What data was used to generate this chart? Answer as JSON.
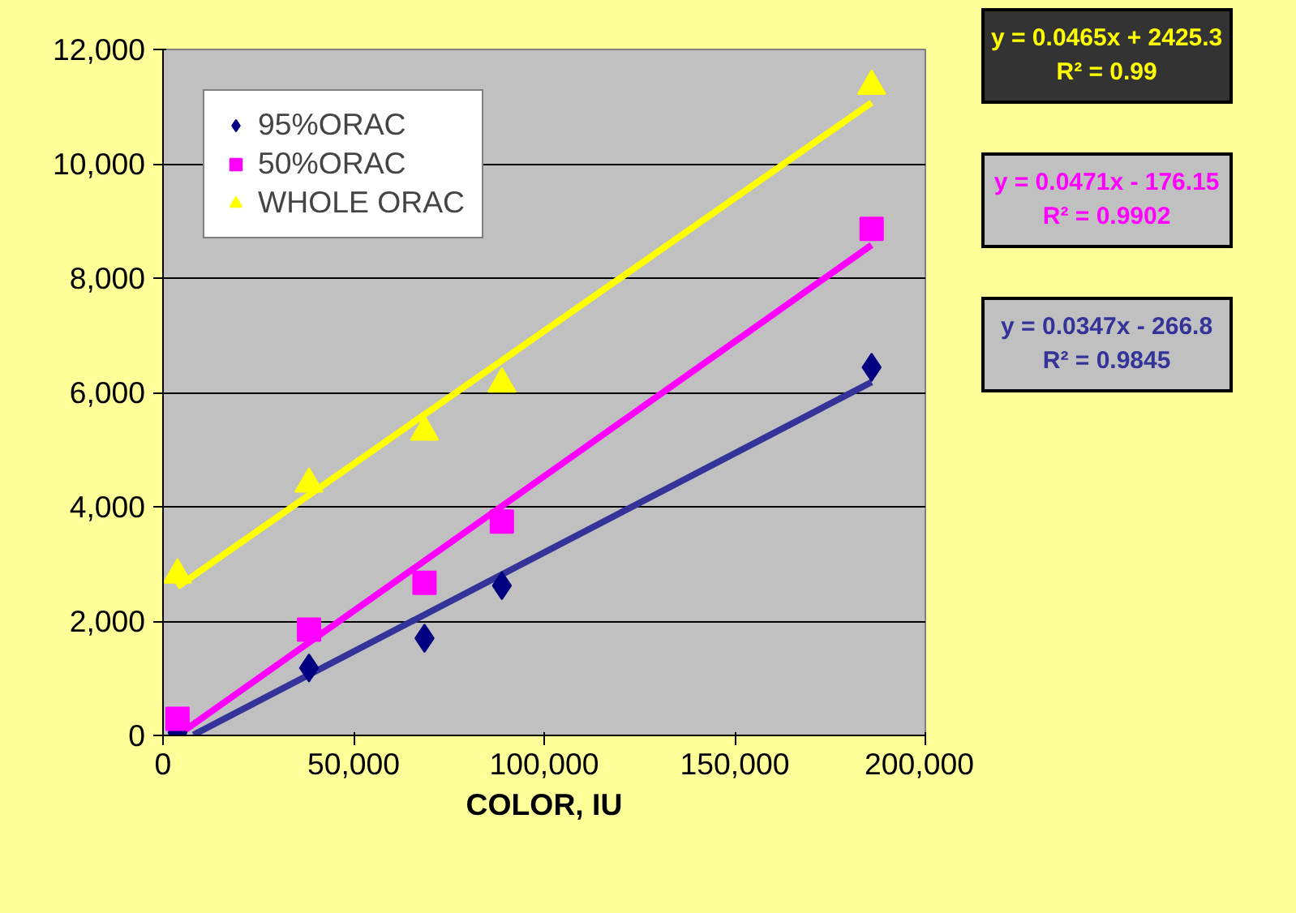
{
  "chart_data": {
    "type": "scatter",
    "xlabel": "COLOR, IU",
    "xlim": [
      0,
      200000
    ],
    "ylim": [
      0,
      12000
    ],
    "xticks": [
      {
        "value": 0,
        "label": "0"
      },
      {
        "value": 50000,
        "label": "50,000"
      },
      {
        "value": 100000,
        "label": "100,000"
      },
      {
        "value": 150000,
        "label": "150,000"
      },
      {
        "value": 200000,
        "label": "200,000"
      }
    ],
    "yticks": [
      {
        "value": 0,
        "label": "0"
      },
      {
        "value": 2000,
        "label": "2,000"
      },
      {
        "value": 4000,
        "label": "4,000"
      },
      {
        "value": 6000,
        "label": "6,000"
      },
      {
        "value": 8000,
        "label": "8,000"
      },
      {
        "value": 10000,
        "label": "10,000"
      },
      {
        "value": 12000,
        "label": "12,000"
      }
    ],
    "grid": "y",
    "legend": "top left",
    "x": [
      3800,
      38300,
      68600,
      88900,
      185900
    ],
    "series": [
      {
        "type": "line",
        "x": [
          3800,
          185900
        ],
        "color": "#ffff00",
        "values": [
          2600,
          11070
        ],
        "marker": "none"
      },
      {
        "type": "line",
        "x": [
          3800,
          185900
        ],
        "color": "#ff00ff",
        "values": [
          0,
          8580
        ],
        "marker": "none"
      },
      {
        "type": "line",
        "x": [
          8000,
          185900
        ],
        "color": "#333399",
        "values": [
          10,
          6180
        ],
        "marker": "none"
      },
      {
        "name": "95%ORAC",
        "color": "#000080",
        "marker": "diamond",
        "values": [
          50,
          1180,
          1700,
          2620,
          6440
        ]
      },
      {
        "name": "50%ORAC",
        "color": "#ff00ff",
        "marker": "square",
        "values": [
          290,
          1850,
          2670,
          3740,
          8860
        ]
      },
      {
        "name": "WHOLE ORAC",
        "color": "#ffff00",
        "marker": "triangle",
        "values": [
          2810,
          4400,
          5310,
          6150,
          11360
        ]
      }
    ],
    "annotations": [
      "y = 0.0465x + 2425.3\nR² = 0.99",
      "y = 0.0471x - 176.15\nR² = 0.9902",
      "y = 0.0347x - 266.8\nR² = 0.9845"
    ]
  }
}
